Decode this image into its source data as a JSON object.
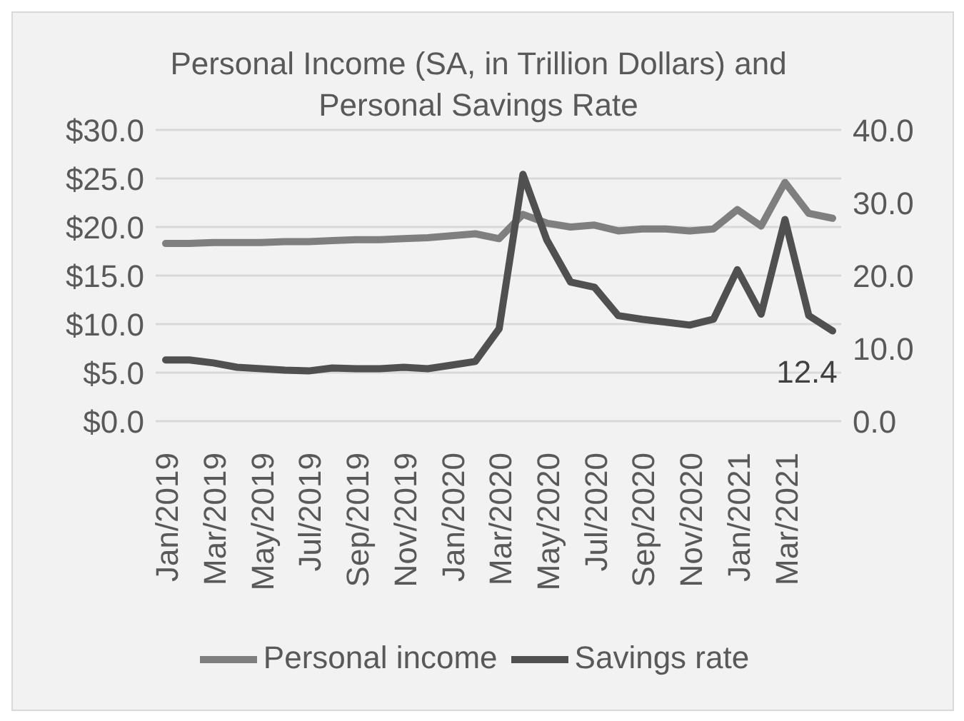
{
  "chart_data": {
    "type": "line",
    "title": "Personal Income (SA, in Trillion Dollars) and Personal Savings Rate",
    "categories": [
      "Jan/2019",
      null,
      "Mar/2019",
      null,
      "May/2019",
      null,
      "Jul/2019",
      null,
      "Sep/2019",
      null,
      "Nov/2019",
      null,
      "Jan/2020",
      null,
      "Mar/2020",
      null,
      "May/2020",
      null,
      "Jul/2020",
      null,
      "Sep/2020",
      null,
      "Nov/2020",
      null,
      "Jan/2021",
      null,
      "Mar/2021",
      null,
      null
    ],
    "series": [
      {
        "name": "Personal income",
        "color": "#7f7f7f",
        "values": [
          18.3,
          18.3,
          18.4,
          18.4,
          18.4,
          18.5,
          18.5,
          18.6,
          18.7,
          18.7,
          18.8,
          18.9,
          19.1,
          19.3,
          18.8,
          21.3,
          20.4,
          20.0,
          20.2,
          19.6,
          19.8,
          19.8,
          19.6,
          19.8,
          21.8,
          20.1,
          24.6,
          21.4,
          20.9
        ]
      },
      {
        "name": "Savings rate",
        "color": "#505050",
        "axis": "y2",
        "values": [
          8.4,
          8.4,
          8.0,
          7.4,
          7.2,
          7.0,
          6.9,
          7.3,
          7.2,
          7.2,
          7.4,
          7.2,
          7.7,
          8.2,
          12.7,
          33.9,
          24.9,
          19.1,
          18.4,
          14.5,
          14.0,
          13.6,
          13.2,
          14.0,
          20.8,
          14.7,
          27.7,
          14.5,
          12.4
        ],
        "value_labels": [
          null,
          null,
          null,
          null,
          null,
          null,
          null,
          null,
          null,
          null,
          null,
          null,
          null,
          null,
          null,
          null,
          null,
          null,
          null,
          null,
          null,
          null,
          null,
          null,
          null,
          null,
          null,
          null,
          "12.4"
        ]
      }
    ],
    "ylim": [
      0,
      30
    ],
    "yticks": [
      {
        "value": 0,
        "label": "$0.0"
      },
      {
        "value": 5,
        "label": "$5.0"
      },
      {
        "value": 10,
        "label": "$10.0"
      },
      {
        "value": 15,
        "label": "$15.0"
      },
      {
        "value": 20,
        "label": "$20.0"
      },
      {
        "value": 25,
        "label": "$25.0"
      },
      {
        "value": 30,
        "label": "$30.0"
      }
    ],
    "y2lim": [
      0,
      40
    ],
    "y2ticks": [
      {
        "value": 0,
        "label": "0.0"
      },
      {
        "value": 10,
        "label": "10.0"
      },
      {
        "value": 20,
        "label": "20.0"
      },
      {
        "value": 30,
        "label": "30.0"
      },
      {
        "value": 40,
        "label": "40.0"
      }
    ],
    "grid": "y",
    "legend": "bottom",
    "marker": "none",
    "line_style": "solid"
  }
}
